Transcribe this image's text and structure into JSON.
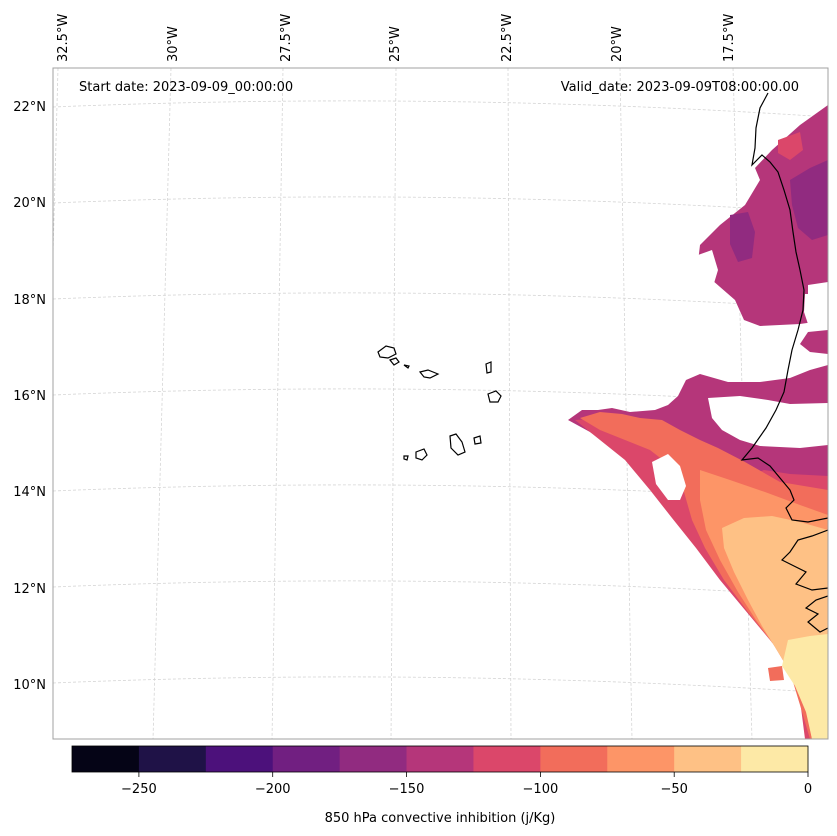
{
  "header": {
    "start_date": "Start date: 2023-09-09_00:00:00",
    "valid_date": "Valid_date: 2023-09-09T08:00:00.00"
  },
  "axes": {
    "lon_labels": [
      "32.5°W",
      "30°W",
      "27.5°W",
      "25°W",
      "22.5°W",
      "20°W",
      "17.5°W"
    ],
    "lat_labels": [
      "22°N",
      "20°N",
      "18°N",
      "16°N",
      "14°N",
      "12°N",
      "10°N"
    ]
  },
  "colorbar": {
    "label": "850 hPa convective inhibition (j/Kg)",
    "tick_labels": [
      "−250",
      "−200",
      "−150",
      "−100",
      "−50",
      "0"
    ],
    "levels": [
      -275,
      -250,
      -225,
      -200,
      -175,
      -150,
      -125,
      -100,
      -75,
      -50,
      -25,
      0
    ],
    "colors": [
      "#050416",
      "#1f1247",
      "#4c117b",
      "#711f81",
      "#912b80",
      "#b5367a",
      "#db476a",
      "#f26d5b",
      "#fd9567",
      "#fec185",
      "#fde9a6"
    ]
  },
  "map": {
    "projection": "Lambert Conformal",
    "variable": "850 hPa convective inhibition",
    "units": "j/Kg",
    "border_color": "#a0a0a0",
    "gridline_color": "#d5d5d5"
  }
}
